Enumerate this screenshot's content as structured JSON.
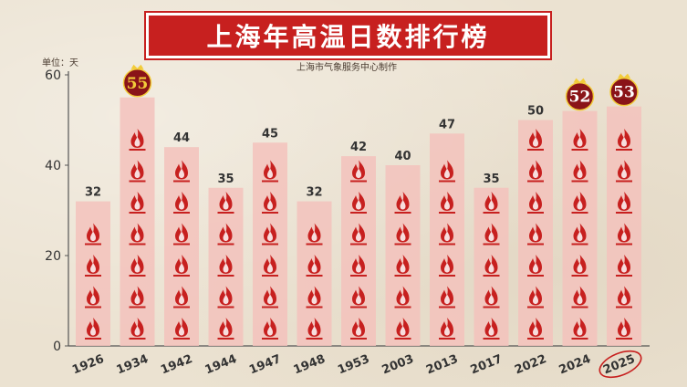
{
  "title": "上海年高温日数排行榜",
  "subtitle": "上海市气象服务中心制作",
  "unit_label": "单位：天",
  "colors": {
    "banner": "#c7201f",
    "bar": "#f3c2bc",
    "flame": "#c7201f",
    "medal": "#8a1418",
    "medal_gold": "#f2cc3a",
    "axis": "#555555",
    "label": "#333333",
    "circle_highlight": "#c7201f"
  },
  "chart_data": {
    "type": "bar",
    "title": "上海年高温日数排行榜",
    "ylabel": "单位：天",
    "xlabel": "",
    "ylim": [
      0,
      60
    ],
    "yticks": [
      0,
      20,
      40,
      60
    ],
    "categories": [
      "1926",
      "1934",
      "1942",
      "1944",
      "1947",
      "1948",
      "1953",
      "2003",
      "2013",
      "2017",
      "2022",
      "2024",
      "2025"
    ],
    "values": [
      32,
      55,
      44,
      35,
      45,
      32,
      42,
      40,
      47,
      35,
      50,
      52,
      53
    ],
    "medal_years": [
      "1934",
      "2024",
      "2025"
    ],
    "circled_category": "2025",
    "grid": false
  }
}
